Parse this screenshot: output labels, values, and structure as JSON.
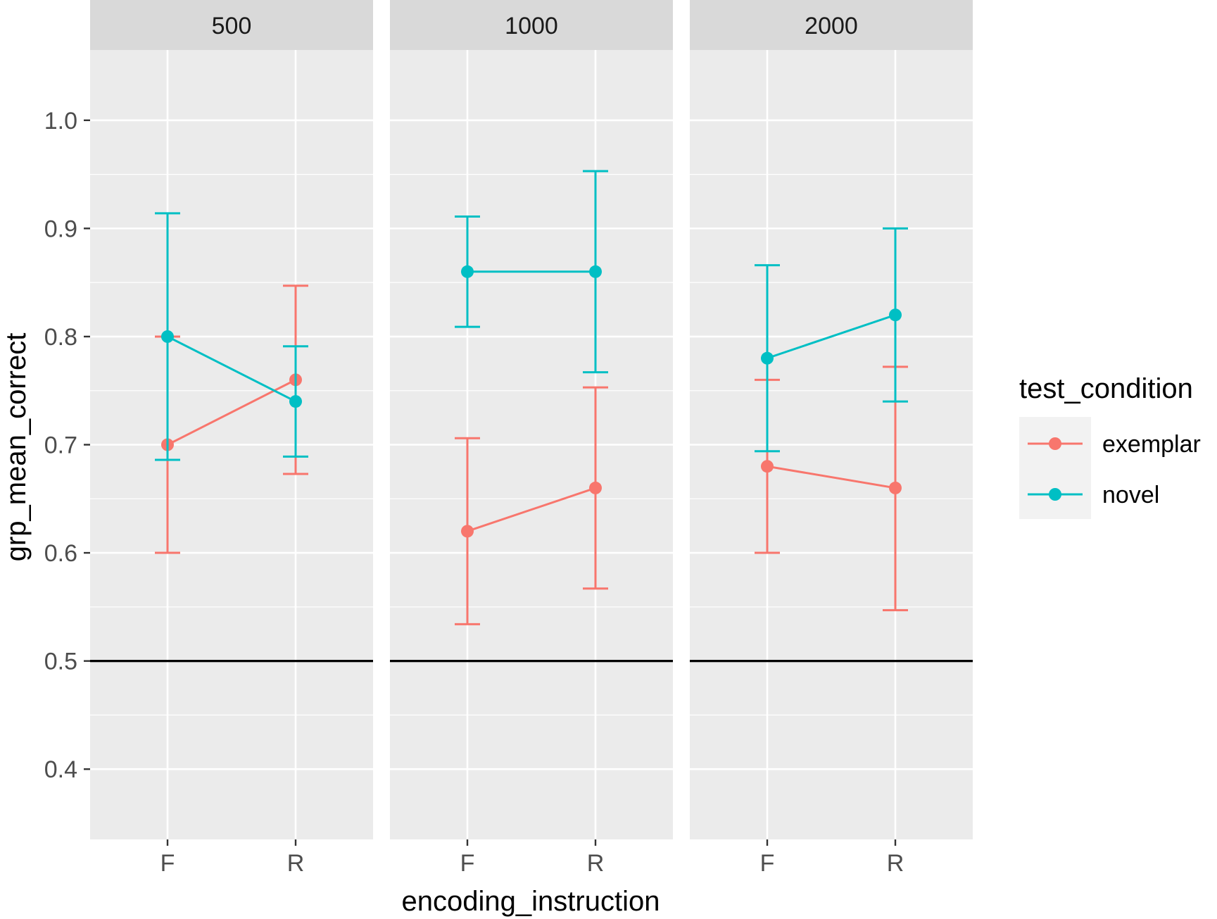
{
  "chart_data": {
    "type": "line",
    "facets": [
      "500",
      "1000",
      "2000"
    ],
    "categories": [
      "F",
      "R"
    ],
    "xlabel": "encoding_instruction",
    "ylabel": "grp_mean_correct",
    "ylim": [
      0.335,
      1.065
    ],
    "yticks": [
      "0.4",
      "0.5",
      "0.6",
      "0.7",
      "0.8",
      "0.9",
      "1.0"
    ],
    "reference_line": 0.5,
    "legend": {
      "title": "test_condition",
      "placement": "right",
      "items": [
        "exemplar",
        "novel"
      ]
    },
    "series": [
      {
        "name": "exemplar",
        "color": "#F8766D",
        "panels": [
          {
            "facet": "500",
            "values": [
              0.7,
              0.76
            ],
            "lower": [
              0.6,
              0.673
            ],
            "upper": [
              0.8,
              0.847
            ]
          },
          {
            "facet": "1000",
            "values": [
              0.62,
              0.66
            ],
            "lower": [
              0.534,
              0.567
            ],
            "upper": [
              0.706,
              0.753
            ]
          },
          {
            "facet": "2000",
            "values": [
              0.68,
              0.66
            ],
            "lower": [
              0.6,
              0.547
            ],
            "upper": [
              0.76,
              0.772
            ]
          }
        ]
      },
      {
        "name": "novel",
        "color": "#00BFC4",
        "panels": [
          {
            "facet": "500",
            "values": [
              0.8,
              0.74
            ],
            "lower": [
              0.686,
              0.689
            ],
            "upper": [
              0.914,
              0.791
            ]
          },
          {
            "facet": "1000",
            "values": [
              0.86,
              0.86
            ],
            "lower": [
              0.809,
              0.767
            ],
            "upper": [
              0.911,
              0.953
            ]
          },
          {
            "facet": "2000",
            "values": [
              0.78,
              0.82
            ],
            "lower": [
              0.694,
              0.74
            ],
            "upper": [
              0.866,
              0.9
            ]
          }
        ]
      }
    ],
    "grid": true,
    "background": "#EBEBEB",
    "strip_color": "#D9D9D9"
  }
}
